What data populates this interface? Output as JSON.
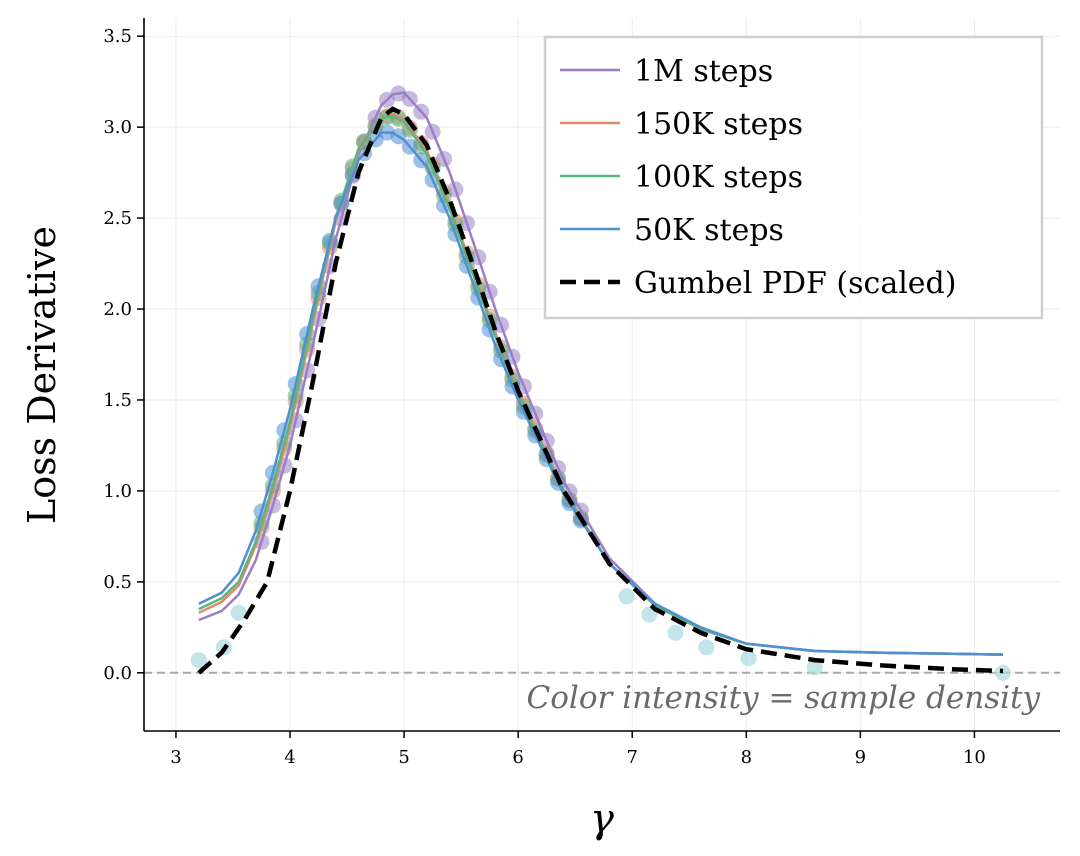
{
  "chart_data": {
    "type": "line",
    "title": "",
    "xlabel": "γ",
    "ylabel": "Loss Derivative",
    "xlim": [
      2.72,
      10.75
    ],
    "ylim": [
      -0.32,
      3.6
    ],
    "xticks": [
      3,
      4,
      5,
      6,
      7,
      8,
      9,
      10
    ],
    "yticks": [
      0.0,
      0.5,
      1.0,
      1.5,
      2.0,
      2.5,
      3.0,
      3.5
    ],
    "grid": true,
    "legend_position": "top-right",
    "reference_line": {
      "y": 0.0,
      "style": "dashed",
      "color": "#aaaaaa"
    },
    "annotation": "Color intensity = sample density",
    "x": [
      3.2,
      3.4,
      3.55,
      3.7,
      3.85,
      4.0,
      4.2,
      4.4,
      4.6,
      4.8,
      4.9,
      5.0,
      5.2,
      5.4,
      5.6,
      5.8,
      6.0,
      6.4,
      6.8,
      7.2,
      7.6,
      8.0,
      8.6,
      9.2,
      9.8,
      10.25
    ],
    "series": [
      {
        "name": "1M steps",
        "color": "#9a7fc6",
        "values": [
          0.29,
          0.34,
          0.43,
          0.62,
          0.92,
          1.25,
          1.8,
          2.38,
          2.85,
          3.12,
          3.18,
          3.19,
          3.05,
          2.75,
          2.38,
          2.0,
          1.65,
          1.05,
          0.63,
          0.38,
          0.24,
          0.16,
          0.12,
          0.11,
          0.105,
          0.1
        ]
      },
      {
        "name": "150K steps",
        "color": "#e08a6c",
        "values": [
          0.33,
          0.39,
          0.48,
          0.7,
          1.0,
          1.35,
          1.92,
          2.48,
          2.87,
          3.05,
          3.07,
          3.04,
          2.87,
          2.57,
          2.22,
          1.87,
          1.55,
          1.0,
          0.6,
          0.37,
          0.24,
          0.16,
          0.12,
          0.11,
          0.105,
          0.1
        ]
      },
      {
        "name": "100K steps",
        "color": "#5cb57d",
        "values": [
          0.35,
          0.41,
          0.5,
          0.72,
          1.03,
          1.38,
          1.95,
          2.5,
          2.88,
          3.05,
          3.06,
          3.03,
          2.85,
          2.55,
          2.2,
          1.85,
          1.53,
          1.0,
          0.6,
          0.37,
          0.24,
          0.16,
          0.12,
          0.11,
          0.105,
          0.1
        ]
      },
      {
        "name": "50K steps",
        "color": "#4f90d2",
        "values": [
          0.38,
          0.44,
          0.55,
          0.78,
          1.1,
          1.45,
          2.0,
          2.5,
          2.82,
          2.97,
          2.97,
          2.93,
          2.78,
          2.5,
          2.15,
          1.8,
          1.5,
          0.98,
          0.6,
          0.38,
          0.25,
          0.16,
          0.12,
          0.11,
          0.105,
          0.1
        ]
      }
    ],
    "scatter_x": [
      3.75,
      3.85,
      3.95,
      4.05,
      4.15,
      4.25,
      4.35,
      4.45,
      4.55,
      4.65,
      4.75,
      4.85,
      4.95,
      5.05,
      5.15,
      5.25,
      5.35,
      5.45,
      5.55,
      5.65,
      5.75,
      5.85,
      5.95,
      6.05,
      6.15,
      6.25,
      6.35,
      6.45,
      6.55
    ],
    "low_density_points": {
      "color": "#a9d8e0",
      "x": [
        3.2,
        3.42,
        3.55,
        6.95,
        7.15,
        7.38,
        7.65,
        8.02,
        8.6,
        10.25
      ],
      "y": [
        0.07,
        0.14,
        0.33,
        0.42,
        0.32,
        0.22,
        0.14,
        0.08,
        0.03,
        0.0
      ]
    },
    "reference": {
      "name": "Gumbel PDF (scaled)",
      "color": "#000000",
      "style": "dashed",
      "x": [
        3.2,
        3.4,
        3.6,
        3.8,
        4.0,
        4.2,
        4.4,
        4.6,
        4.8,
        4.9,
        5.0,
        5.2,
        5.4,
        5.6,
        5.8,
        6.0,
        6.4,
        6.8,
        7.2,
        7.6,
        8.0,
        8.6,
        9.2,
        9.8,
        10.25
      ],
      "values": [
        0.0,
        0.11,
        0.29,
        0.5,
        1.0,
        1.6,
        2.25,
        2.75,
        3.05,
        3.1,
        3.07,
        2.9,
        2.6,
        2.25,
        1.88,
        1.55,
        1.0,
        0.6,
        0.35,
        0.22,
        0.13,
        0.07,
        0.04,
        0.02,
        0.01
      ]
    }
  }
}
